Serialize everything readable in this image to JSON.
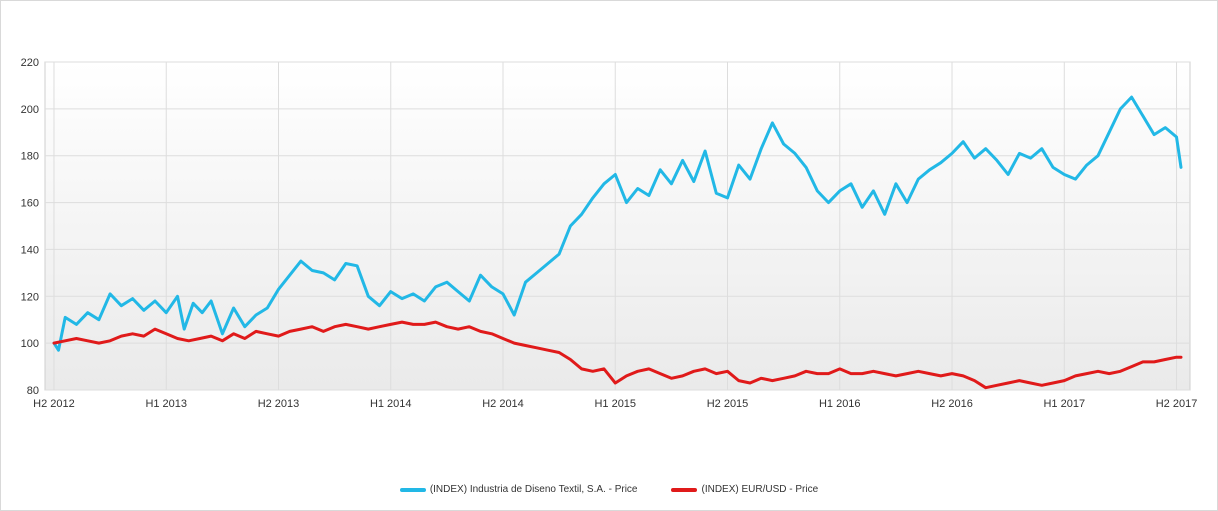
{
  "chart_data": {
    "type": "line",
    "x_ticks": [
      "H2 2012",
      "H1 2013",
      "H2 2013",
      "H1 2014",
      "H2 2014",
      "H1 2015",
      "H2 2015",
      "H1 2016",
      "H2 2016",
      "H1 2017",
      "H2 2017"
    ],
    "y_ticks": [
      "80",
      "100",
      "120",
      "140",
      "160",
      "180",
      "200",
      "220"
    ],
    "ylim": [
      80,
      220
    ],
    "xlim": [
      2012.46,
      2017.56
    ],
    "grid": true,
    "legend_position": "bottom",
    "series": [
      {
        "name": "(INDEX) Industria de Diseno Textil, S.A. - Price",
        "color": "#22b8e6",
        "x": [
          2012.5,
          2012.52,
          2012.55,
          2012.6,
          2012.65,
          2012.7,
          2012.75,
          2012.8,
          2012.85,
          2012.9,
          2012.95,
          2013.0,
          2013.05,
          2013.08,
          2013.12,
          2013.16,
          2013.2,
          2013.25,
          2013.3,
          2013.35,
          2013.4,
          2013.45,
          2013.5,
          2013.55,
          2013.6,
          2013.65,
          2013.7,
          2013.75,
          2013.8,
          2013.85,
          2013.9,
          2013.95,
          2014.0,
          2014.05,
          2014.1,
          2014.15,
          2014.2,
          2014.25,
          2014.3,
          2014.35,
          2014.4,
          2014.45,
          2014.5,
          2014.55,
          2014.6,
          2014.65,
          2014.7,
          2014.75,
          2014.8,
          2014.85,
          2014.9,
          2014.95,
          2015.0,
          2015.05,
          2015.1,
          2015.15,
          2015.2,
          2015.25,
          2015.3,
          2015.35,
          2015.4,
          2015.45,
          2015.5,
          2015.55,
          2015.6,
          2015.65,
          2015.7,
          2015.75,
          2015.8,
          2015.85,
          2015.9,
          2015.95,
          2016.0,
          2016.05,
          2016.1,
          2016.15,
          2016.2,
          2016.25,
          2016.3,
          2016.35,
          2016.4,
          2016.45,
          2016.5,
          2016.55,
          2016.6,
          2016.65,
          2016.7,
          2016.75,
          2016.8,
          2016.85,
          2016.9,
          2016.95,
          2017.0,
          2017.05,
          2017.1,
          2017.15,
          2017.2,
          2017.25,
          2017.3,
          2017.35,
          2017.4,
          2017.45,
          2017.5,
          2017.52
        ],
        "values": [
          100,
          97,
          111,
          108,
          113,
          110,
          121,
          116,
          119,
          114,
          118,
          113,
          120,
          106,
          117,
          113,
          118,
          104,
          115,
          107,
          112,
          115,
          123,
          129,
          135,
          131,
          130,
          127,
          134,
          133,
          120,
          116,
          122,
          119,
          121,
          118,
          124,
          126,
          122,
          118,
          129,
          124,
          121,
          112,
          126,
          130,
          134,
          138,
          150,
          155,
          162,
          168,
          172,
          160,
          166,
          163,
          174,
          168,
          178,
          169,
          182,
          164,
          162,
          176,
          170,
          183,
          194,
          185,
          181,
          175,
          165,
          160,
          165,
          168,
          158,
          165,
          155,
          168,
          160,
          170,
          174,
          177,
          181,
          186,
          179,
          183,
          178,
          172,
          181,
          179,
          183,
          175,
          172,
          170,
          176,
          180,
          190,
          200,
          205,
          197,
          189,
          192,
          188,
          175
        ]
      },
      {
        "name": "(INDEX) EUR/USD - Price",
        "color": "#e01a1a",
        "x": [
          2012.5,
          2012.55,
          2012.6,
          2012.65,
          2012.7,
          2012.75,
          2012.8,
          2012.85,
          2012.9,
          2012.95,
          2013.0,
          2013.05,
          2013.1,
          2013.15,
          2013.2,
          2013.25,
          2013.3,
          2013.35,
          2013.4,
          2013.45,
          2013.5,
          2013.55,
          2013.6,
          2013.65,
          2013.7,
          2013.75,
          2013.8,
          2013.85,
          2013.9,
          2013.95,
          2014.0,
          2014.05,
          2014.1,
          2014.15,
          2014.2,
          2014.25,
          2014.3,
          2014.35,
          2014.4,
          2014.45,
          2014.5,
          2014.55,
          2014.6,
          2014.65,
          2014.7,
          2014.75,
          2014.8,
          2014.85,
          2014.9,
          2014.95,
          2015.0,
          2015.05,
          2015.1,
          2015.15,
          2015.2,
          2015.25,
          2015.3,
          2015.35,
          2015.4,
          2015.45,
          2015.5,
          2015.55,
          2015.6,
          2015.65,
          2015.7,
          2015.75,
          2015.8,
          2015.85,
          2015.9,
          2015.95,
          2016.0,
          2016.05,
          2016.1,
          2016.15,
          2016.2,
          2016.25,
          2016.3,
          2016.35,
          2016.4,
          2016.45,
          2016.5,
          2016.55,
          2016.6,
          2016.65,
          2016.7,
          2016.75,
          2016.8,
          2016.85,
          2016.9,
          2016.95,
          2017.0,
          2017.05,
          2017.1,
          2017.15,
          2017.2,
          2017.25,
          2017.3,
          2017.35,
          2017.4,
          2017.45,
          2017.5,
          2017.52
        ],
        "values": [
          100,
          101,
          102,
          101,
          100,
          101,
          103,
          104,
          103,
          106,
          104,
          102,
          101,
          102,
          103,
          101,
          104,
          102,
          105,
          104,
          103,
          105,
          106,
          107,
          105,
          107,
          108,
          107,
          106,
          107,
          108,
          109,
          108,
          108,
          109,
          107,
          106,
          107,
          105,
          104,
          102,
          100,
          99,
          98,
          97,
          96,
          93,
          89,
          88,
          89,
          83,
          86,
          88,
          89,
          87,
          85,
          86,
          88,
          89,
          87,
          88,
          84,
          83,
          85,
          84,
          85,
          86,
          88,
          87,
          87,
          89,
          87,
          87,
          88,
          87,
          86,
          87,
          88,
          87,
          86,
          87,
          86,
          84,
          81,
          82,
          83,
          84,
          83,
          82,
          83,
          84,
          86,
          87,
          88,
          87,
          88,
          90,
          92,
          92,
          93,
          94,
          94
        ]
      }
    ]
  }
}
